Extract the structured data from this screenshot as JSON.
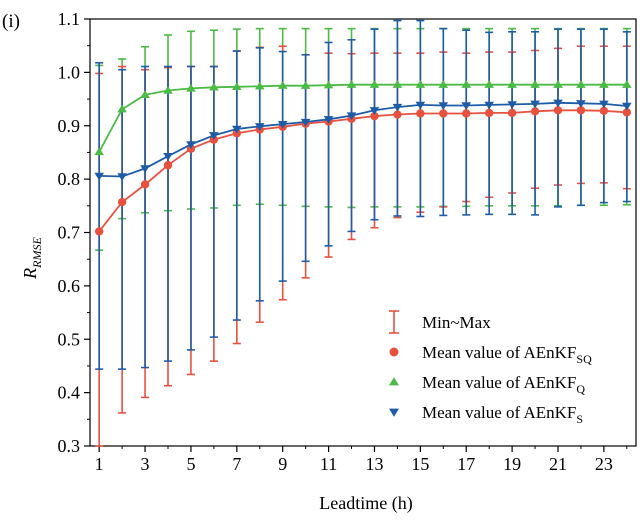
{
  "panel_label": "(i)",
  "chart_data": {
    "type": "line",
    "xlabel": "Leadtime (h)",
    "ylabel": "R",
    "ylabel_sub": "RMSE",
    "xlim": [
      0.6,
      24.4
    ],
    "ylim": [
      0.3,
      1.1
    ],
    "xticks": [
      1,
      3,
      5,
      7,
      9,
      11,
      13,
      15,
      17,
      19,
      21,
      23
    ],
    "yticks": [
      0.3,
      0.4,
      0.5,
      0.6,
      0.7,
      0.8,
      0.9,
      1.0,
      1.1
    ],
    "ytick_labels": [
      "0.3",
      "0.4",
      "0.5",
      "0.6",
      "0.7",
      "0.8",
      "0.9",
      "1.0",
      "1.1"
    ],
    "x": [
      1,
      2,
      3,
      4,
      5,
      6,
      7,
      8,
      9,
      10,
      11,
      12,
      13,
      14,
      15,
      16,
      17,
      18,
      19,
      20,
      21,
      22,
      23,
      24
    ],
    "series": [
      {
        "key": "sq",
        "color": "#e8513f",
        "marker": "circle",
        "mean": [
          0.702,
          0.757,
          0.79,
          0.826,
          0.857,
          0.874,
          0.886,
          0.893,
          0.898,
          0.904,
          0.908,
          0.913,
          0.918,
          0.921,
          0.923,
          0.923,
          0.923,
          0.924,
          0.924,
          0.927,
          0.929,
          0.929,
          0.928,
          0.925
        ],
        "min": [
          0.3,
          0.362,
          0.391,
          0.413,
          0.434,
          0.459,
          0.492,
          0.532,
          0.574,
          0.615,
          0.654,
          0.687,
          0.709,
          0.728,
          0.738,
          0.748,
          0.758,
          0.766,
          0.774,
          0.783,
          0.789,
          0.792,
          0.793,
          0.782
        ],
        "max": [
          0.998,
          1.011,
          1.005,
          1.009,
          1.011,
          1.011,
          1.04,
          1.047,
          1.049,
          1.033,
          1.036,
          1.035,
          1.036,
          1.036,
          1.036,
          1.038,
          1.036,
          1.038,
          1.038,
          1.041,
          1.045,
          1.049,
          1.049,
          1.049
        ]
      },
      {
        "key": "q",
        "color": "#4bbb45",
        "marker": "triangle-up",
        "mean": [
          0.851,
          0.931,
          0.958,
          0.966,
          0.97,
          0.972,
          0.973,
          0.974,
          0.975,
          0.975,
          0.976,
          0.977,
          0.977,
          0.977,
          0.977,
          0.977,
          0.977,
          0.977,
          0.977,
          0.977,
          0.977,
          0.977,
          0.977,
          0.977
        ],
        "min": [
          0.667,
          0.726,
          0.737,
          0.741,
          0.744,
          0.746,
          0.751,
          0.753,
          0.751,
          0.749,
          0.748,
          0.747,
          0.748,
          0.748,
          0.748,
          0.749,
          0.749,
          0.75,
          0.75,
          0.75,
          0.75,
          0.751,
          0.751,
          0.752
        ],
        "max": [
          1.013,
          1.025,
          1.048,
          1.07,
          1.077,
          1.079,
          1.081,
          1.082,
          1.082,
          1.082,
          1.082,
          1.082,
          1.082,
          1.082,
          1.082,
          1.082,
          1.082,
          1.082,
          1.082,
          1.082,
          1.082,
          1.082,
          1.082,
          1.082
        ]
      },
      {
        "key": "s",
        "color": "#1f5ca8",
        "marker": "triangle-down",
        "mean": [
          0.806,
          0.805,
          0.82,
          0.843,
          0.865,
          0.882,
          0.894,
          0.899,
          0.903,
          0.907,
          0.912,
          0.919,
          0.929,
          0.935,
          0.939,
          0.938,
          0.938,
          0.939,
          0.94,
          0.941,
          0.943,
          0.942,
          0.941,
          0.937
        ],
        "min": [
          0.444,
          0.444,
          0.447,
          0.459,
          0.48,
          0.504,
          0.536,
          0.572,
          0.609,
          0.646,
          0.675,
          0.702,
          0.724,
          0.731,
          0.73,
          0.732,
          0.733,
          0.734,
          0.734,
          0.733,
          0.748,
          0.751,
          0.756,
          0.758
        ],
        "max": [
          1.018,
          1.005,
          1.011,
          1.011,
          1.011,
          1.011,
          1.04,
          1.046,
          1.039,
          1.033,
          1.056,
          1.061,
          1.081,
          1.097,
          1.097,
          1.082,
          1.079,
          1.075,
          1.076,
          1.076,
          1.081,
          1.081,
          1.081,
          1.076
        ]
      }
    ],
    "legend": {
      "placement": "bottom-right",
      "items": [
        {
          "type": "errorbar",
          "text": "Min~Max",
          "sub": "",
          "color": "#e8513f"
        },
        {
          "type": "circle",
          "text": "Mean value of AEnKF",
          "sub": "SQ",
          "color": "#e8513f"
        },
        {
          "type": "triangle-up",
          "text": "Mean value of AEnKF",
          "sub": "Q",
          "color": "#4bbb45"
        },
        {
          "type": "triangle-down",
          "text": "Mean value of AEnKF",
          "sub": "S",
          "color": "#1f5ca8"
        }
      ]
    }
  }
}
